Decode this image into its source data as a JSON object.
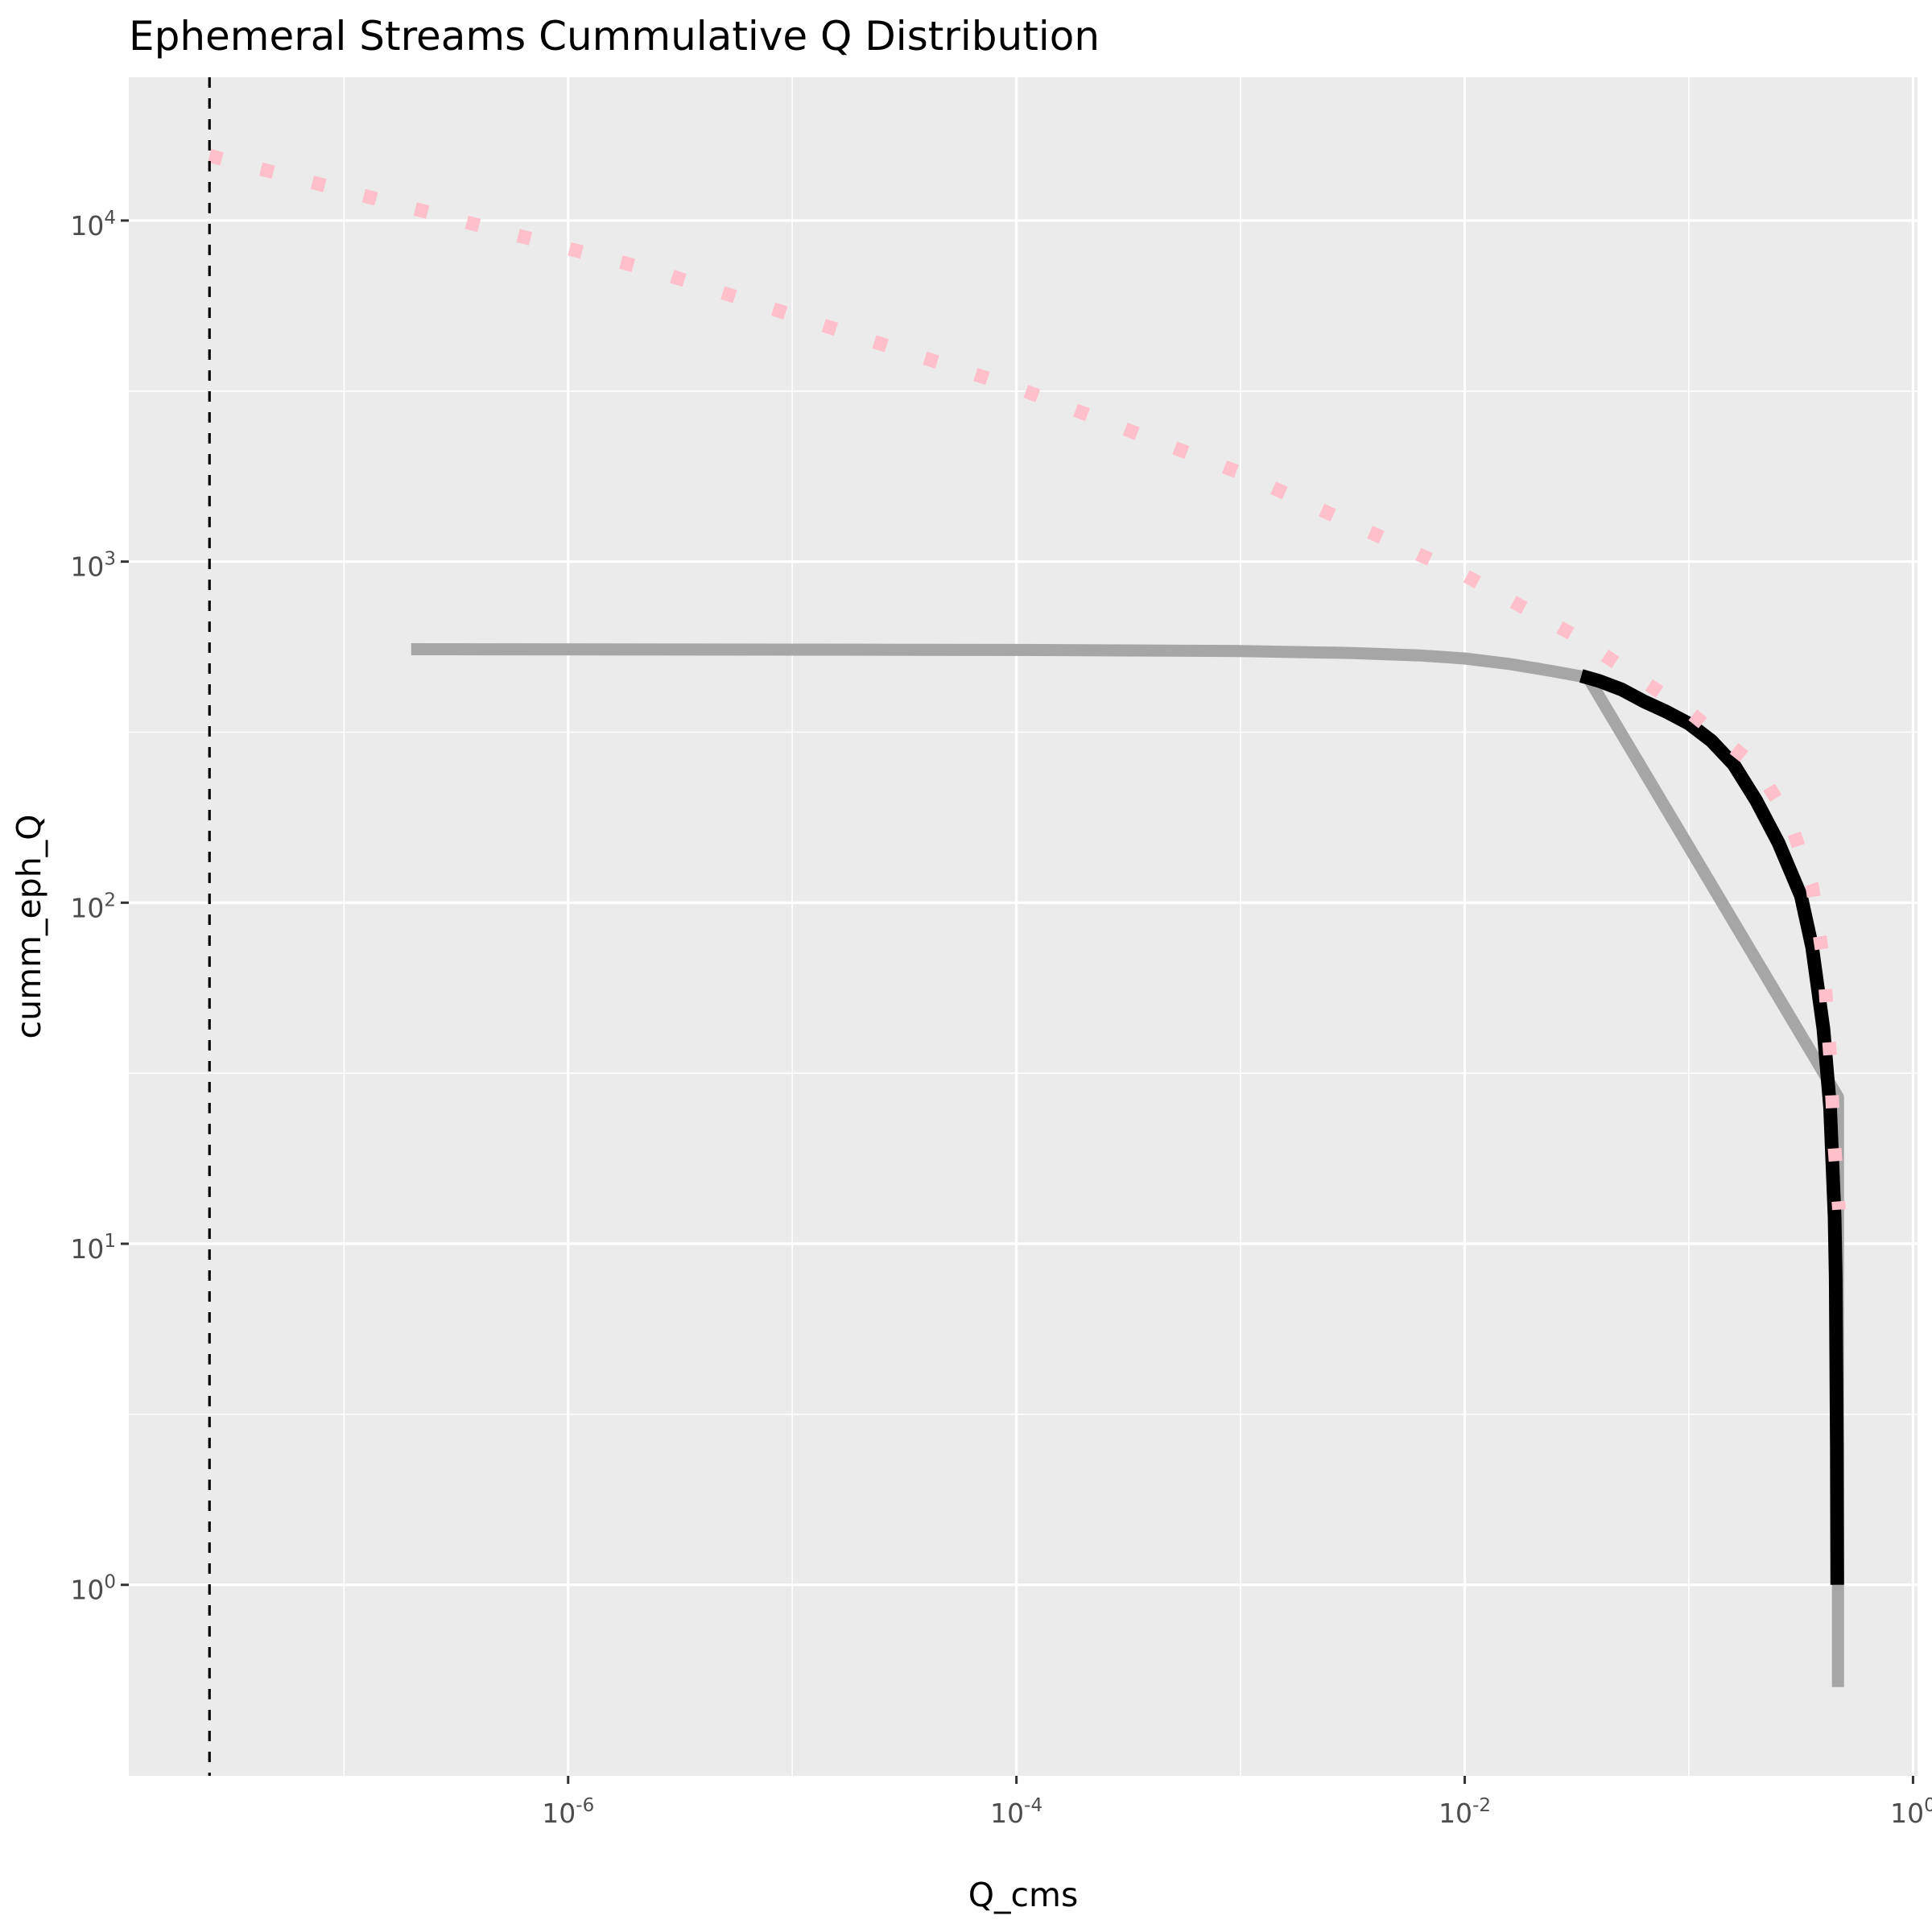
{
  "chart_data": {
    "type": "line",
    "title": "Ephemeral Streams Cummulative Q Distribution",
    "xlabel": "Q_cms",
    "ylabel": "cumm_eph_Q",
    "x_scale": "log10",
    "y_scale": "log10",
    "xlim_log10": [
      -7.96,
      0.02
    ],
    "ylim_log10": [
      -0.56,
      4.42
    ],
    "x_ticks": [
      {
        "base": "10",
        "exp": "-6",
        "log10": -6
      },
      {
        "base": "10",
        "exp": "-4",
        "log10": -4
      },
      {
        "base": "10",
        "exp": "-2",
        "log10": -2
      },
      {
        "base": "10",
        "exp": "0",
        "log10": 0
      }
    ],
    "y_ticks": [
      {
        "base": "10",
        "exp": "0",
        "log10": 0
      },
      {
        "base": "10",
        "exp": "1",
        "log10": 1
      },
      {
        "base": "10",
        "exp": "2",
        "log10": 2
      },
      {
        "base": "10",
        "exp": "3",
        "log10": 3
      },
      {
        "base": "10",
        "exp": "4",
        "log10": 4
      }
    ],
    "vline": {
      "log10_x": -7.6,
      "style": "dashed",
      "color": "#000000"
    },
    "series": [
      {
        "name": "gray_curve",
        "color": "#a6a6a6",
        "style": "solid",
        "points_log10": [
          [
            -6.7,
            2.743
          ],
          [
            -5,
            2.742
          ],
          [
            -4,
            2.741
          ],
          [
            -3,
            2.738
          ],
          [
            -2.5,
            2.732
          ],
          [
            -2.2,
            2.725
          ],
          [
            -2.0,
            2.716
          ],
          [
            -1.8,
            2.7
          ],
          [
            -1.6,
            2.678
          ],
          [
            -1.45,
            2.66
          ],
          [
            -0.335,
            1.43
          ],
          [
            -0.335,
            -0.3
          ]
        ]
      },
      {
        "name": "black_curve",
        "color": "#000000",
        "style": "solid",
        "points_log10": [
          [
            -1.48,
            2.665
          ],
          [
            -1.4,
            2.65
          ],
          [
            -1.3,
            2.625
          ],
          [
            -1.2,
            2.59
          ],
          [
            -1.1,
            2.56
          ],
          [
            -1.0,
            2.525
          ],
          [
            -0.9,
            2.475
          ],
          [
            -0.8,
            2.405
          ],
          [
            -0.7,
            2.3
          ],
          [
            -0.6,
            2.175
          ],
          [
            -0.5,
            2.02
          ],
          [
            -0.45,
            1.87
          ],
          [
            -0.4,
            1.63
          ],
          [
            -0.37,
            1.4
          ],
          [
            -0.35,
            1.08
          ],
          [
            -0.345,
            0.9
          ],
          [
            -0.34,
            0.4
          ],
          [
            -0.338,
            0.0
          ]
        ]
      },
      {
        "name": "pink_dotted_curve",
        "color": "#ffc0cb",
        "style": "dotted",
        "points_log10": [
          [
            -7.6,
            4.19
          ],
          [
            -5.6,
            3.85
          ],
          [
            -4.0,
            3.51
          ],
          [
            -3.0,
            3.26
          ],
          [
            -2.0,
            2.96
          ],
          [
            -1.5,
            2.78
          ],
          [
            -1.0,
            2.56
          ],
          [
            -0.7,
            2.4
          ],
          [
            -0.55,
            2.24
          ],
          [
            -0.45,
            2.05
          ],
          [
            -0.4,
            1.83
          ],
          [
            -0.37,
            1.55
          ],
          [
            -0.35,
            1.28
          ],
          [
            -0.33,
            1.1
          ]
        ]
      }
    ]
  }
}
